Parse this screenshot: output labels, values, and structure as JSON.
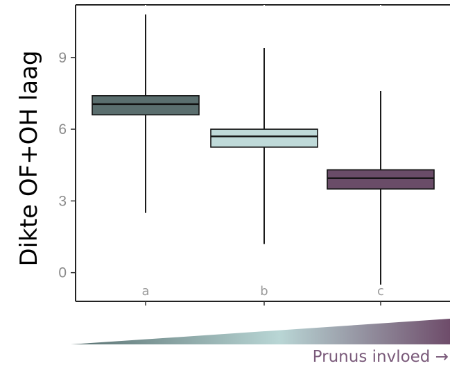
{
  "chart_data": {
    "type": "boxplot",
    "ylabel": "Dikte OF+OH laag",
    "ylim": [
      -1.2,
      11.2
    ],
    "yticks": [
      0,
      3,
      6,
      9
    ],
    "yticks_text": [
      "0",
      "3",
      "6",
      "9"
    ],
    "grid": false,
    "groups": [
      {
        "label": "a",
        "min": 2.5,
        "q1": 6.6,
        "median": 7.05,
        "q3": 7.4,
        "max": 10.8,
        "color": "#5a6e6e"
      },
      {
        "label": "b",
        "min": 1.2,
        "q1": 5.25,
        "median": 5.7,
        "q3": 6.0,
        "max": 9.4,
        "color": "#bfdad9"
      },
      {
        "label": "c",
        "min": -0.5,
        "q1": 3.5,
        "median": 3.95,
        "q3": 4.3,
        "max": 7.6,
        "color": "#6a4c68"
      }
    ],
    "gradient_label": "Prunus invloed →",
    "gradient_colors": [
      "#587070",
      "#b9d6d5",
      "#6e4c6a"
    ]
  }
}
